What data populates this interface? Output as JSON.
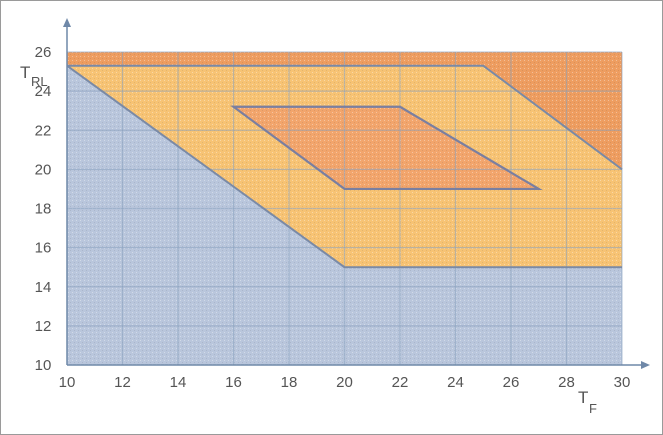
{
  "chart_data": {
    "type": "area",
    "title": "",
    "xlabel": {
      "main": "T",
      "sub": "F"
    },
    "ylabel": {
      "main": "T",
      "sub": "RL"
    },
    "xlim": [
      10,
      30
    ],
    "ylim": [
      10,
      26
    ],
    "xticks": [
      "10",
      "12",
      "14",
      "16",
      "18",
      "20",
      "22",
      "24",
      "26",
      "28",
      "30"
    ],
    "yticks": [
      "10",
      "12",
      "14",
      "16",
      "18",
      "20",
      "22",
      "24",
      "26"
    ],
    "grid": true,
    "regions": [
      {
        "color": "#b9c6dc",
        "points": [
          [
            10,
            10
          ],
          [
            10,
            25.3
          ],
          [
            20,
            15
          ],
          [
            30,
            15
          ],
          [
            30,
            10
          ]
        ]
      },
      {
        "color": "#f7c374",
        "points": [
          [
            10,
            25.3
          ],
          [
            25,
            25.3
          ],
          [
            30,
            20
          ],
          [
            30,
            15
          ],
          [
            20,
            15
          ]
        ]
      },
      {
        "color": "#ee9d60",
        "points": [
          [
            10,
            26
          ],
          [
            30,
            26
          ],
          [
            30,
            20
          ],
          [
            25,
            25.3
          ],
          [
            10,
            25.3
          ]
        ]
      },
      {
        "color": "#f2a56c",
        "outline": true,
        "points": [
          [
            16,
            23.2
          ],
          [
            22,
            23.2
          ],
          [
            27,
            19
          ],
          [
            20,
            19
          ]
        ]
      }
    ]
  }
}
